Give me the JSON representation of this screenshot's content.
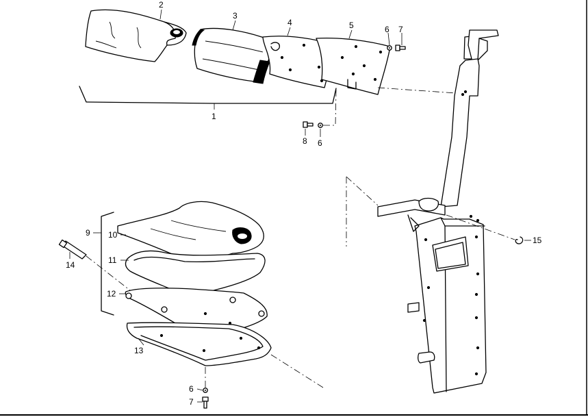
{
  "callouts": {
    "c1": "1",
    "c2": "2",
    "c3": "3",
    "c4": "4",
    "c5": "5",
    "c6_top": "6",
    "c7_top": "7",
    "c8": "8",
    "c6_mid": "6",
    "c9": "9",
    "c10": "10",
    "c11": "11",
    "c12": "12",
    "c13": "13",
    "c14": "14",
    "c15": "15",
    "c6_bottom": "6",
    "c7_bottom": "7"
  }
}
